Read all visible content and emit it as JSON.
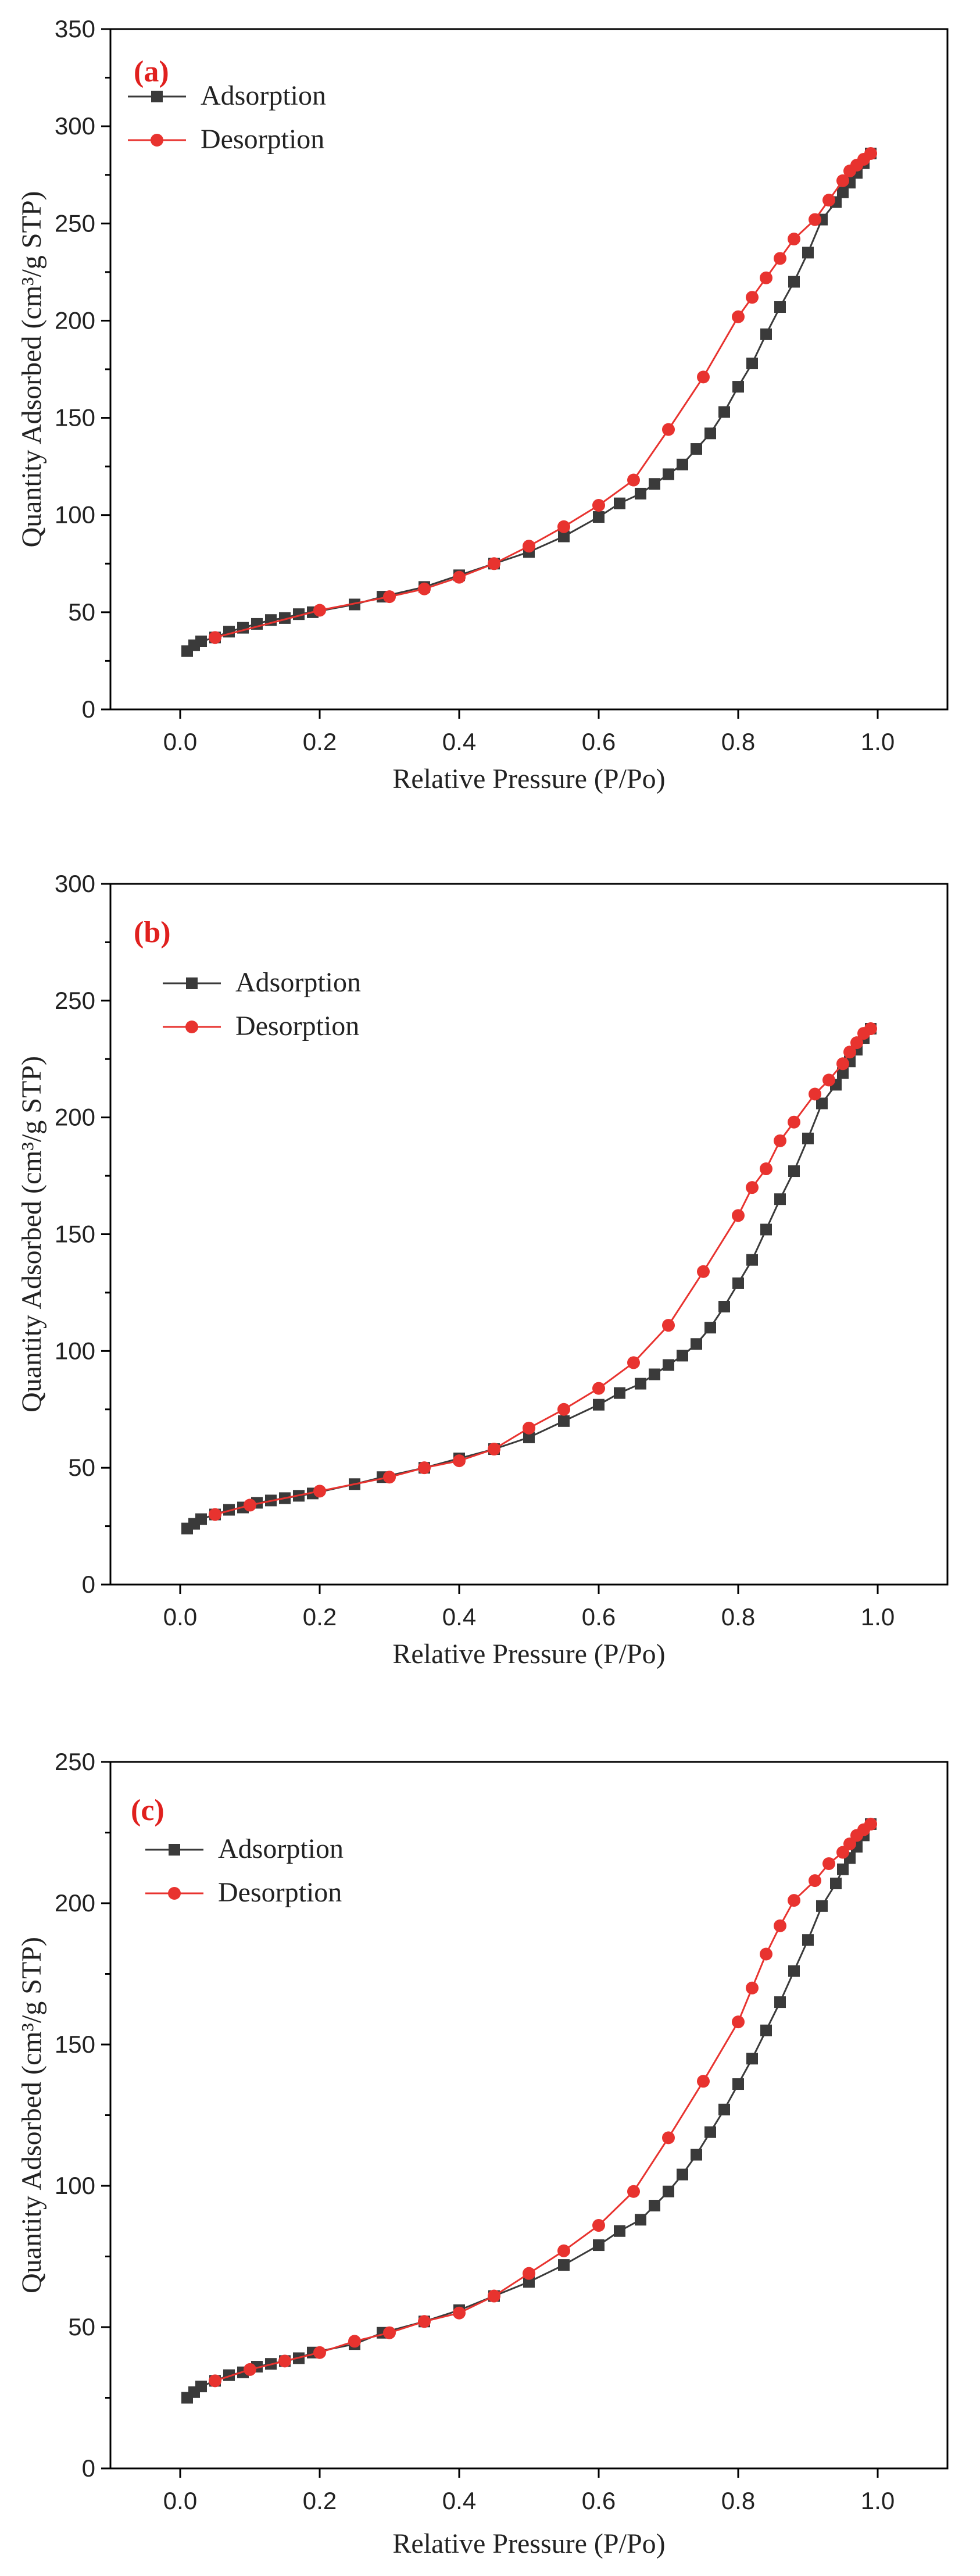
{
  "chart_data": [
    {
      "type": "line",
      "panel_label": "(a)",
      "xlabel": "Relative Pressure (P/Po)",
      "ylabel": "Quantity Adsorbed (cm³/g STP)",
      "xlim": [
        -0.1,
        1.1
      ],
      "ylim": [
        0,
        350
      ],
      "x_ticks": [
        0.0,
        0.2,
        0.4,
        0.6,
        0.8,
        1.0
      ],
      "x_tick_labels": [
        "0.0",
        "0.2",
        "0.4",
        "0.6",
        "0.8",
        "1.0"
      ],
      "y_ticks": [
        0,
        50,
        100,
        150,
        200,
        250,
        300,
        350
      ],
      "y_tick_labels": [
        "0",
        "50",
        "100",
        "150",
        "200",
        "250",
        "300",
        "350"
      ],
      "legend_position": "top-left",
      "series": [
        {
          "name": "Adsorption",
          "color": "#3a3a3a",
          "marker": "square",
          "x": [
            0.01,
            0.02,
            0.03,
            0.05,
            0.07,
            0.09,
            0.11,
            0.13,
            0.15,
            0.17,
            0.19,
            0.25,
            0.29,
            0.35,
            0.4,
            0.45,
            0.5,
            0.55,
            0.6,
            0.63,
            0.66,
            0.68,
            0.7,
            0.72,
            0.74,
            0.76,
            0.78,
            0.8,
            0.82,
            0.84,
            0.86,
            0.88,
            0.9,
            0.92,
            0.94,
            0.95,
            0.96,
            0.97,
            0.98,
            0.99
          ],
          "y": [
            30,
            33,
            35,
            37,
            40,
            42,
            44,
            46,
            47,
            49,
            50,
            54,
            58,
            63,
            69,
            75,
            81,
            89,
            99,
            106,
            111,
            116,
            121,
            126,
            134,
            142,
            153,
            166,
            178,
            193,
            207,
            220,
            235,
            252,
            261,
            266,
            271,
            276,
            281,
            286
          ]
        },
        {
          "name": "Desorption",
          "color": "#e8332f",
          "marker": "circle",
          "x": [
            0.05,
            0.2,
            0.3,
            0.35,
            0.4,
            0.45,
            0.5,
            0.55,
            0.6,
            0.65,
            0.7,
            0.75,
            0.8,
            0.82,
            0.84,
            0.86,
            0.88,
            0.91,
            0.93,
            0.95,
            0.96,
            0.97,
            0.98,
            0.99
          ],
          "y": [
            37,
            51,
            58,
            62,
            68,
            75,
            84,
            94,
            105,
            118,
            144,
            171,
            202,
            212,
            222,
            232,
            242,
            252,
            262,
            272,
            277,
            280,
            283,
            286
          ]
        }
      ]
    },
    {
      "type": "line",
      "panel_label": "(b)",
      "xlabel": "Relative Pressure (P/Po)",
      "ylabel": "Quantity Adsorbed (cm³/g STP)",
      "xlim": [
        -0.1,
        1.1
      ],
      "ylim": [
        0,
        300
      ],
      "x_ticks": [
        0.0,
        0.2,
        0.4,
        0.6,
        0.8,
        1.0
      ],
      "x_tick_labels": [
        "0.0",
        "0.2",
        "0.4",
        "0.6",
        "0.8",
        "1.0"
      ],
      "y_ticks": [
        0,
        50,
        100,
        150,
        200,
        250,
        300
      ],
      "y_tick_labels": [
        "0",
        "50",
        "100",
        "150",
        "200",
        "250",
        "300"
      ],
      "legend_position": "top-left",
      "series": [
        {
          "name": "Adsorption",
          "color": "#3a3a3a",
          "marker": "square",
          "x": [
            0.01,
            0.02,
            0.03,
            0.05,
            0.07,
            0.09,
            0.11,
            0.13,
            0.15,
            0.17,
            0.19,
            0.25,
            0.29,
            0.35,
            0.4,
            0.45,
            0.5,
            0.55,
            0.6,
            0.63,
            0.66,
            0.68,
            0.7,
            0.72,
            0.74,
            0.76,
            0.78,
            0.8,
            0.82,
            0.84,
            0.86,
            0.88,
            0.9,
            0.92,
            0.94,
            0.95,
            0.96,
            0.97,
            0.98,
            0.99
          ],
          "y": [
            24,
            26,
            28,
            30,
            32,
            33,
            35,
            36,
            37,
            38,
            39,
            43,
            46,
            50,
            54,
            58,
            63,
            70,
            77,
            82,
            86,
            90,
            94,
            98,
            103,
            110,
            119,
            129,
            139,
            152,
            165,
            177,
            191,
            206,
            214,
            219,
            224,
            229,
            234,
            238
          ]
        },
        {
          "name": "Desorption",
          "color": "#e8332f",
          "marker": "circle",
          "x": [
            0.05,
            0.1,
            0.2,
            0.3,
            0.35,
            0.4,
            0.45,
            0.5,
            0.55,
            0.6,
            0.65,
            0.7,
            0.75,
            0.8,
            0.82,
            0.84,
            0.86,
            0.88,
            0.91,
            0.93,
            0.95,
            0.96,
            0.97,
            0.98,
            0.99
          ],
          "y": [
            30,
            34,
            40,
            46,
            50,
            53,
            58,
            67,
            75,
            84,
            95,
            111,
            134,
            158,
            170,
            178,
            190,
            198,
            210,
            216,
            223,
            228,
            232,
            236,
            238
          ]
        }
      ]
    },
    {
      "type": "line",
      "panel_label": "(c)",
      "xlabel": "Relative Pressure (P/Po)",
      "ylabel": "Quantity Adsorbed (cm³/g STP)",
      "xlim": [
        -0.1,
        1.1
      ],
      "ylim": [
        0,
        250
      ],
      "x_ticks": [
        0.0,
        0.2,
        0.4,
        0.6,
        0.8,
        1.0
      ],
      "x_tick_labels": [
        "0.0",
        "0.2",
        "0.4",
        "0.6",
        "0.8",
        "1.0"
      ],
      "y_ticks": [
        0,
        50,
        100,
        150,
        200,
        250
      ],
      "y_tick_labels": [
        "0",
        "50",
        "100",
        "150",
        "200",
        "250"
      ],
      "legend_position": "top-left",
      "series": [
        {
          "name": "Adsorption",
          "color": "#3a3a3a",
          "marker": "square",
          "x": [
            0.01,
            0.02,
            0.03,
            0.05,
            0.07,
            0.09,
            0.11,
            0.13,
            0.15,
            0.17,
            0.19,
            0.25,
            0.29,
            0.35,
            0.4,
            0.45,
            0.5,
            0.55,
            0.6,
            0.63,
            0.66,
            0.68,
            0.7,
            0.72,
            0.74,
            0.76,
            0.78,
            0.8,
            0.82,
            0.84,
            0.86,
            0.88,
            0.9,
            0.92,
            0.94,
            0.95,
            0.96,
            0.97,
            0.98,
            0.99
          ],
          "y": [
            25,
            27,
            29,
            31,
            33,
            34,
            36,
            37,
            38,
            39,
            41,
            44,
            48,
            52,
            56,
            61,
            66,
            72,
            79,
            84,
            88,
            93,
            98,
            104,
            111,
            119,
            127,
            136,
            145,
            155,
            165,
            176,
            187,
            199,
            207,
            212,
            216,
            220,
            224,
            228
          ]
        },
        {
          "name": "Desorption",
          "color": "#e8332f",
          "marker": "circle",
          "x": [
            0.05,
            0.1,
            0.15,
            0.2,
            0.25,
            0.3,
            0.35,
            0.4,
            0.45,
            0.5,
            0.55,
            0.6,
            0.65,
            0.7,
            0.75,
            0.8,
            0.82,
            0.84,
            0.86,
            0.88,
            0.91,
            0.93,
            0.95,
            0.96,
            0.97,
            0.98,
            0.99
          ],
          "y": [
            31,
            35,
            38,
            41,
            45,
            48,
            52,
            55,
            61,
            69,
            77,
            86,
            98,
            117,
            137,
            158,
            170,
            182,
            192,
            201,
            208,
            214,
            218,
            221,
            224,
            226,
            228
          ]
        }
      ]
    }
  ]
}
